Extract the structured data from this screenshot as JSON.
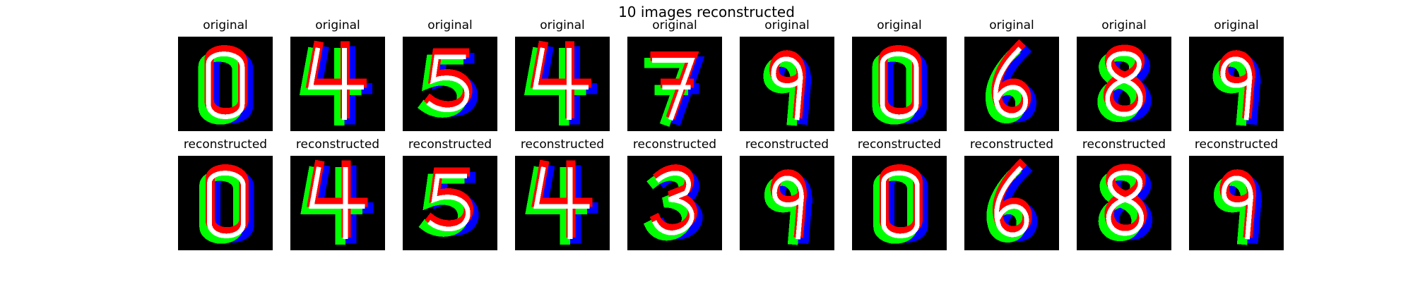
{
  "figure": {
    "title": "10 images reconstructed",
    "background": "#000000",
    "channel_colors": {
      "red": "#ff0000",
      "green": "#00ff00",
      "blue": "#0000ff"
    }
  },
  "rows": [
    {
      "row": "original",
      "titles": [
        "original",
        "original",
        "original",
        "original",
        "original",
        "original",
        "original",
        "original",
        "original",
        "original"
      ],
      "digits": [
        "0",
        "4",
        "5",
        "4",
        "7",
        "9",
        "0",
        "6",
        "8",
        "9"
      ]
    },
    {
      "row": "reconstructed",
      "titles": [
        "reconstructed",
        "reconstructed",
        "reconstructed",
        "reconstructed",
        "reconstructed",
        "reconstructed",
        "reconstructed",
        "reconstructed",
        "reconstructed",
        "reconstructed"
      ],
      "digits": [
        "0",
        "4",
        "5",
        "4",
        "3",
        "9",
        "0",
        "6",
        "8",
        "9"
      ]
    }
  ]
}
